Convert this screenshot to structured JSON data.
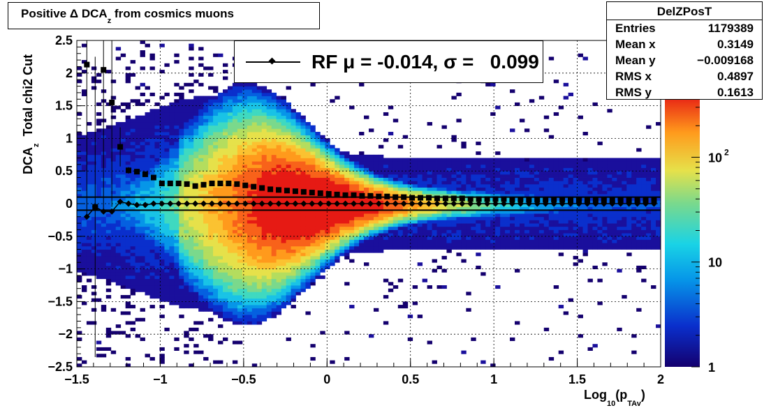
{
  "title": {
    "prefix": "Positive Δ DCA",
    "sub": "z",
    "suffix": " from cosmics muons"
  },
  "stats": {
    "name": "DelZPosT",
    "rows": [
      {
        "label": "Entries",
        "value": "1179389"
      },
      {
        "label": "Mean x",
        "value": "0.3149"
      },
      {
        "label": "Mean y",
        "value": "−0.009168"
      },
      {
        "label": "RMS x",
        "value": "0.4897"
      },
      {
        "label": "RMS y",
        "value": "0.1613"
      }
    ]
  },
  "legend": {
    "text": "RF μ = -0.014, σ =   0.099"
  },
  "axis_titles": {
    "y_main": "DCA",
    "y_sub": "z",
    "y_rest": "  Total chi2 Cut",
    "x_main": "Log",
    "x_sub": "10",
    "x_open": "(p",
    "x_sub2": "TAv",
    "x_close": ")"
  },
  "chart_data": {
    "type": "heatmap",
    "title": "Positive Δ DCA_z from cosmics muons",
    "xlabel": "Log10(p_TAv)",
    "ylabel": "DCA_z  Total chi2 Cut",
    "xlim": [
      -1.5,
      2
    ],
    "ylim": [
      -2.5,
      2.5
    ],
    "x_ticks": [
      -1.5,
      -1,
      -0.5,
      0,
      0.5,
      1,
      1.5,
      2
    ],
    "x_tick_labels": [
      "−1.5",
      "−1",
      "−0.5",
      "0",
      "0.5",
      "1",
      "1.5",
      "2"
    ],
    "y_ticks": [
      -2.5,
      -2,
      -1.5,
      -1,
      -0.5,
      0,
      0.5,
      1,
      1.5,
      2,
      2.5
    ],
    "y_tick_labels": [
      "−2.5",
      "−2",
      "−1.5",
      "−1",
      "−0.5",
      "0",
      "0.5",
      "1",
      "1.5",
      "2",
      "2.5"
    ],
    "z_scale": "log",
    "z_tick_labels": [
      "1",
      "10",
      "10^2"
    ],
    "grid": true,
    "series": [
      {
        "marker": "square",
        "x": [
          -1.44,
          -1.39,
          -1.34,
          -1.29,
          -1.24,
          -1.19,
          -1.14,
          -1.09,
          -1.04,
          -0.99,
          -0.94,
          -0.89,
          -0.84,
          -0.79,
          -0.74,
          -0.69,
          -0.64,
          -0.59,
          -0.54,
          -0.49,
          -0.44,
          -0.39,
          -0.34,
          -0.29,
          -0.24,
          -0.19,
          -0.14,
          -0.09,
          -0.04,
          0.01,
          0.06,
          0.11,
          0.16,
          0.21,
          0.26,
          0.31,
          0.36,
          0.41,
          0.46,
          0.51,
          0.56,
          0.61,
          0.66,
          0.71,
          0.76,
          0.81,
          0.86,
          0.91,
          0.96,
          1.01,
          1.06,
          1.11,
          1.16,
          1.21,
          1.26,
          1.31,
          1.36,
          1.41,
          1.46,
          1.51,
          1.56,
          1.61,
          1.66,
          1.71,
          1.76,
          1.81,
          1.86,
          1.91,
          1.96
        ],
        "y": [
          2.13,
          -0.05,
          2.05,
          1.55,
          0.87,
          0.51,
          0.49,
          0.45,
          0.4,
          0.31,
          0.31,
          0.31,
          0.3,
          0.27,
          0.29,
          0.31,
          0.31,
          0.31,
          0.3,
          0.28,
          0.26,
          0.24,
          0.22,
          0.21,
          0.2,
          0.19,
          0.18,
          0.17,
          0.16,
          0.15,
          0.14,
          0.13,
          0.13,
          0.12,
          0.12,
          0.11,
          0.11,
          0.1,
          0.1,
          0.09,
          0.09,
          0.09,
          0.08,
          0.08,
          0.08,
          0.08,
          0.07,
          0.07,
          0.07,
          0.07,
          0.07,
          0.06,
          0.06,
          0.06,
          0.06,
          0.06,
          0.06,
          0.06,
          0.05,
          0.05,
          0.05,
          0.05,
          0.05,
          0.05,
          0.05,
          0.05,
          0.05,
          0.05,
          0.05
        ],
        "yerr": [
          2.3,
          2.3,
          2.2,
          1.6,
          0.3,
          0.05,
          0.04,
          0.03,
          0.03,
          0.02,
          0.02,
          0.02,
          0.02,
          0.02,
          0.02,
          0.02,
          0.01,
          0.01,
          0.01,
          0.01,
          0.01,
          0.01,
          0.01,
          0.01,
          0.01,
          0.01,
          0.01,
          0.01,
          0.01,
          0.01,
          0.01,
          0.01,
          0.01,
          0.01,
          0.01,
          0.01,
          0.01,
          0.01,
          0.01,
          0.01,
          0.01,
          0.01,
          0.01,
          0.01,
          0.01,
          0.01,
          0.01,
          0.01,
          0.01,
          0.01,
          0.01,
          0.01,
          0.01,
          0.01,
          0.01,
          0.01,
          0.01,
          0.01,
          0.01,
          0.01,
          0.01,
          0.01,
          0.01,
          0.01,
          0.01,
          0.01,
          0.01,
          0.01,
          0.01
        ]
      },
      {
        "name": "RF μ = -0.014, σ =   0.099",
        "marker": "diamond",
        "x": [
          -1.44,
          -1.39,
          -1.34,
          -1.29,
          -1.24,
          -1.19,
          -1.14,
          -1.09,
          -1.04,
          -0.99,
          -0.94,
          -0.89,
          -0.84,
          -0.79,
          -0.74,
          -0.69,
          -0.64,
          -0.59,
          -0.54,
          -0.49,
          -0.44,
          -0.39,
          -0.34,
          -0.29,
          -0.24,
          -0.19,
          -0.14,
          -0.09,
          -0.04,
          0.01,
          0.06,
          0.11,
          0.16,
          0.21,
          0.26,
          0.31,
          0.36,
          0.41,
          0.46,
          0.51,
          0.56,
          0.61,
          0.66,
          0.71,
          0.76,
          0.81,
          0.86,
          0.91,
          0.96,
          1.01,
          1.06,
          1.11,
          1.16,
          1.21,
          1.26,
          1.31,
          1.36,
          1.41,
          1.46,
          1.51,
          1.56,
          1.61,
          1.66,
          1.71,
          1.76,
          1.81,
          1.86,
          1.91,
          1.96
        ],
        "y": [
          -0.2,
          -0.05,
          -0.12,
          -0.12,
          0.03,
          0.0,
          -0.02,
          -0.02,
          0.0,
          0.0,
          0.0,
          0.0,
          0.0,
          0.0,
          0.0,
          0.0,
          0.0,
          0.0,
          0.0,
          0.0,
          0.0,
          0.0,
          0.0,
          0.0,
          0.0,
          0.0,
          0.0,
          0.0,
          0.0,
          0.0,
          0.0,
          0.0,
          0.0,
          0.0,
          0.0,
          0.0,
          0.0,
          0.0,
          0.0,
          0.0,
          0.0,
          0.0,
          0.0,
          0.0,
          0.0,
          0.0,
          0.0,
          0.0,
          0.0,
          0.0,
          0.0,
          0.0,
          0.0,
          0.0,
          0.0,
          0.0,
          0.0,
          0.0,
          0.0,
          0.0,
          0.0,
          0.0,
          0.0,
          0.0,
          0.0,
          0.0,
          0.0,
          0.0,
          0.0
        ]
      }
    ],
    "reference_lines_y": [
      0.1,
      -0.1
    ]
  }
}
